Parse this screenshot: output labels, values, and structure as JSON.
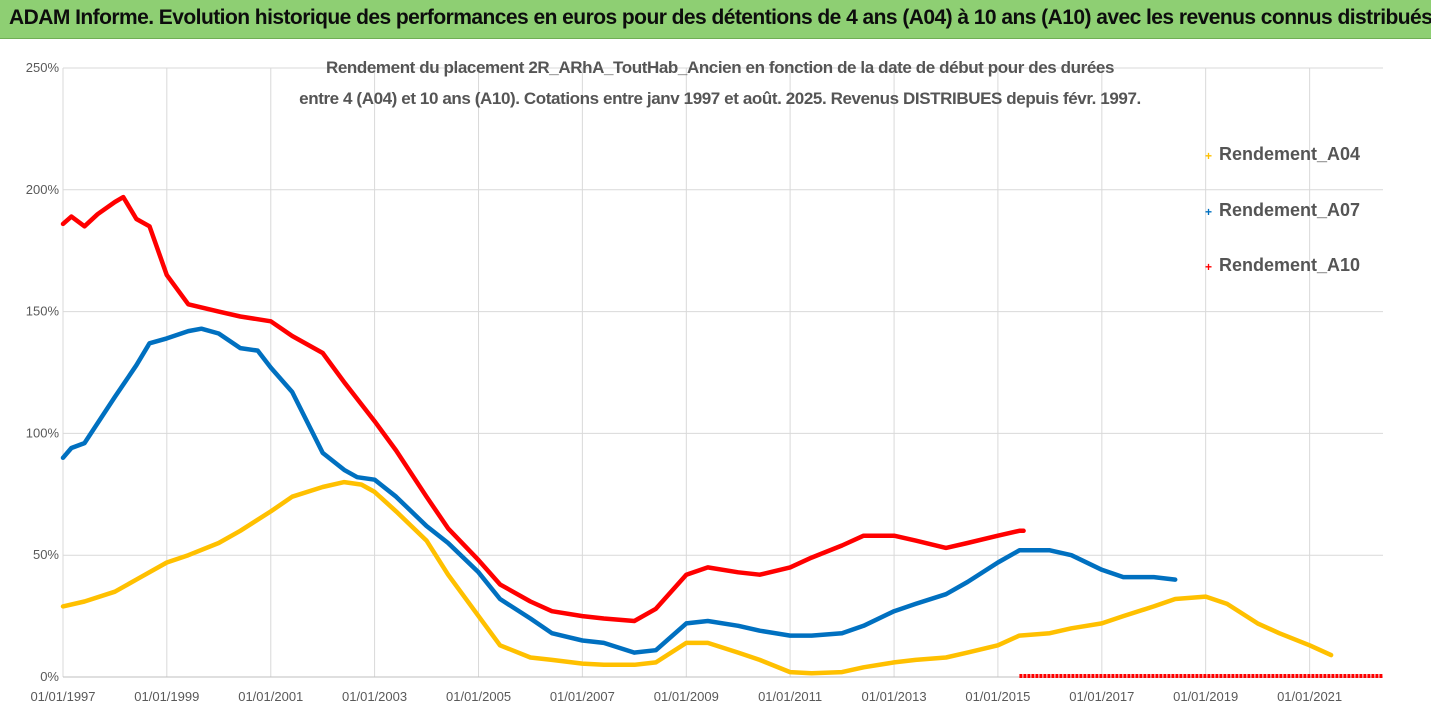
{
  "banner": {
    "title": "ADAM Informe. Evolution historique des performances en euros pour des détentions de 4 ans (A04) à 10 ans (A10) avec les revenus connus distribués"
  },
  "colors": {
    "banner_bg": "#8ecf73",
    "A04": "#ffc000",
    "A07": "#0070c0",
    "A10": "#ff0000",
    "grid": "#d9d9d9",
    "text": "#595959"
  },
  "chart_data": {
    "type": "line",
    "title_line1": "Rendement du placement 2R_ARhA_ToutHab_Ancien en fonction de la date de début pour des durées",
    "title_line2": "entre 4 (A04) et 10 ans (A10). Cotations entre janv 1997 et août. 2025. Revenus DISTRIBUES depuis févr. 1997.",
    "x_axis": {
      "type": "date",
      "range": [
        "1997-01-01",
        "2022-06-01"
      ]
    },
    "x_tick_labels": [
      "01/01/1997",
      "01/01/1999",
      "01/01/2001",
      "01/01/2003",
      "01/01/2005",
      "01/01/2007",
      "01/01/2009",
      "01/01/2011",
      "01/01/2013",
      "01/01/2015",
      "01/01/2017",
      "01/01/2019",
      "01/01/2021"
    ],
    "y_tick_labels": [
      "0%",
      "50%",
      "100%",
      "150%",
      "200%",
      "250%"
    ],
    "ylim": [
      0,
      2.5
    ],
    "grid": true,
    "legend_position": "right",
    "series": [
      {
        "name": "Rendement_A04",
        "color_key": "A04",
        "points": [
          [
            "1997-01-01",
            0.29
          ],
          [
            "1997-06-01",
            0.31
          ],
          [
            "1998-01-01",
            0.35
          ],
          [
            "1998-06-01",
            0.4
          ],
          [
            "1999-01-01",
            0.47
          ],
          [
            "1999-06-01",
            0.5
          ],
          [
            "2000-01-01",
            0.55
          ],
          [
            "2000-06-01",
            0.6
          ],
          [
            "2001-01-01",
            0.68
          ],
          [
            "2001-06-01",
            0.74
          ],
          [
            "2002-01-01",
            0.78
          ],
          [
            "2002-06-01",
            0.8
          ],
          [
            "2002-10-01",
            0.79
          ],
          [
            "2003-01-01",
            0.76
          ],
          [
            "2003-06-01",
            0.68
          ],
          [
            "2004-01-01",
            0.56
          ],
          [
            "2004-06-01",
            0.42
          ],
          [
            "2005-01-01",
            0.25
          ],
          [
            "2005-06-01",
            0.13
          ],
          [
            "2006-01-01",
            0.08
          ],
          [
            "2006-06-01",
            0.07
          ],
          [
            "2007-01-01",
            0.055
          ],
          [
            "2007-06-01",
            0.05
          ],
          [
            "2008-01-01",
            0.05
          ],
          [
            "2008-06-01",
            0.06
          ],
          [
            "2009-01-01",
            0.14
          ],
          [
            "2009-06-01",
            0.14
          ],
          [
            "2010-01-01",
            0.1
          ],
          [
            "2010-06-01",
            0.07
          ],
          [
            "2011-01-01",
            0.02
          ],
          [
            "2011-06-01",
            0.015
          ],
          [
            "2012-01-01",
            0.02
          ],
          [
            "2012-06-01",
            0.04
          ],
          [
            "2013-01-01",
            0.06
          ],
          [
            "2013-06-01",
            0.07
          ],
          [
            "2014-01-01",
            0.08
          ],
          [
            "2014-06-01",
            0.1
          ],
          [
            "2015-01-01",
            0.13
          ],
          [
            "2015-06-01",
            0.17
          ],
          [
            "2016-01-01",
            0.18
          ],
          [
            "2016-06-01",
            0.2
          ],
          [
            "2017-01-01",
            0.22
          ],
          [
            "2017-06-01",
            0.25
          ],
          [
            "2018-01-01",
            0.29
          ],
          [
            "2018-06-01",
            0.32
          ],
          [
            "2019-01-01",
            0.33
          ],
          [
            "2019-06-01",
            0.3
          ],
          [
            "2020-01-01",
            0.22
          ],
          [
            "2020-06-01",
            0.18
          ],
          [
            "2021-01-01",
            0.13
          ],
          [
            "2021-06-01",
            0.09
          ]
        ]
      },
      {
        "name": "Rendement_A07",
        "color_key": "A07",
        "points": [
          [
            "1997-01-01",
            0.9
          ],
          [
            "1997-03-01",
            0.94
          ],
          [
            "1997-06-01",
            0.96
          ],
          [
            "1998-01-01",
            1.15
          ],
          [
            "1998-06-01",
            1.28
          ],
          [
            "1998-09-01",
            1.37
          ],
          [
            "1999-01-01",
            1.39
          ],
          [
            "1999-06-01",
            1.42
          ],
          [
            "1999-09-01",
            1.43
          ],
          [
            "2000-01-01",
            1.41
          ],
          [
            "2000-06-01",
            1.35
          ],
          [
            "2000-10-01",
            1.34
          ],
          [
            "2001-01-01",
            1.27
          ],
          [
            "2001-06-01",
            1.17
          ],
          [
            "2002-01-01",
            0.92
          ],
          [
            "2002-06-01",
            0.85
          ],
          [
            "2002-09-01",
            0.82
          ],
          [
            "2003-01-01",
            0.81
          ],
          [
            "2003-06-01",
            0.74
          ],
          [
            "2004-01-01",
            0.62
          ],
          [
            "2004-06-01",
            0.55
          ],
          [
            "2005-01-01",
            0.43
          ],
          [
            "2005-06-01",
            0.32
          ],
          [
            "2006-01-01",
            0.24
          ],
          [
            "2006-06-01",
            0.18
          ],
          [
            "2007-01-01",
            0.15
          ],
          [
            "2007-06-01",
            0.14
          ],
          [
            "2008-01-01",
            0.1
          ],
          [
            "2008-06-01",
            0.11
          ],
          [
            "2009-01-01",
            0.22
          ],
          [
            "2009-06-01",
            0.23
          ],
          [
            "2010-01-01",
            0.21
          ],
          [
            "2010-06-01",
            0.19
          ],
          [
            "2011-01-01",
            0.17
          ],
          [
            "2011-06-01",
            0.17
          ],
          [
            "2012-01-01",
            0.18
          ],
          [
            "2012-06-01",
            0.21
          ],
          [
            "2013-01-01",
            0.27
          ],
          [
            "2013-06-01",
            0.3
          ],
          [
            "2014-01-01",
            0.34
          ],
          [
            "2014-06-01",
            0.39
          ],
          [
            "2015-01-01",
            0.47
          ],
          [
            "2015-06-01",
            0.52
          ],
          [
            "2016-01-01",
            0.52
          ],
          [
            "2016-06-01",
            0.5
          ],
          [
            "2017-01-01",
            0.44
          ],
          [
            "2017-06-01",
            0.41
          ],
          [
            "2018-01-01",
            0.41
          ],
          [
            "2018-06-01",
            0.4
          ]
        ]
      },
      {
        "name": "Rendement_A10",
        "color_key": "A10",
        "points": [
          [
            "1997-01-01",
            1.86
          ],
          [
            "1997-03-01",
            1.89
          ],
          [
            "1997-06-01",
            1.85
          ],
          [
            "1997-09-01",
            1.9
          ],
          [
            "1998-01-01",
            1.95
          ],
          [
            "1998-03-01",
            1.97
          ],
          [
            "1998-06-01",
            1.88
          ],
          [
            "1998-09-01",
            1.85
          ],
          [
            "1999-01-01",
            1.65
          ],
          [
            "1999-06-01",
            1.53
          ],
          [
            "2000-01-01",
            1.5
          ],
          [
            "2000-06-01",
            1.48
          ],
          [
            "2001-01-01",
            1.46
          ],
          [
            "2001-06-01",
            1.4
          ],
          [
            "2002-01-01",
            1.33
          ],
          [
            "2002-06-01",
            1.21
          ],
          [
            "2003-01-01",
            1.05
          ],
          [
            "2003-06-01",
            0.93
          ],
          [
            "2004-01-01",
            0.74
          ],
          [
            "2004-06-01",
            0.61
          ],
          [
            "2005-01-01",
            0.48
          ],
          [
            "2005-06-01",
            0.38
          ],
          [
            "2006-01-01",
            0.31
          ],
          [
            "2006-06-01",
            0.27
          ],
          [
            "2007-01-01",
            0.25
          ],
          [
            "2007-06-01",
            0.24
          ],
          [
            "2008-01-01",
            0.23
          ],
          [
            "2008-06-01",
            0.28
          ],
          [
            "2009-01-01",
            0.42
          ],
          [
            "2009-06-01",
            0.45
          ],
          [
            "2010-01-01",
            0.43
          ],
          [
            "2010-06-01",
            0.42
          ],
          [
            "2011-01-01",
            0.45
          ],
          [
            "2011-06-01",
            0.49
          ],
          [
            "2012-01-01",
            0.54
          ],
          [
            "2012-06-01",
            0.58
          ],
          [
            "2013-01-01",
            0.58
          ],
          [
            "2013-06-01",
            0.56
          ],
          [
            "2014-01-01",
            0.53
          ],
          [
            "2014-06-01",
            0.55
          ],
          [
            "2015-01-01",
            0.58
          ],
          [
            "2015-06-01",
            0.6
          ],
          [
            "2015-07-01",
            0.6
          ]
        ],
        "zero_tail": [
          [
            "2015-06-01",
            0
          ],
          [
            "2022-06-01",
            0
          ]
        ]
      }
    ]
  }
}
